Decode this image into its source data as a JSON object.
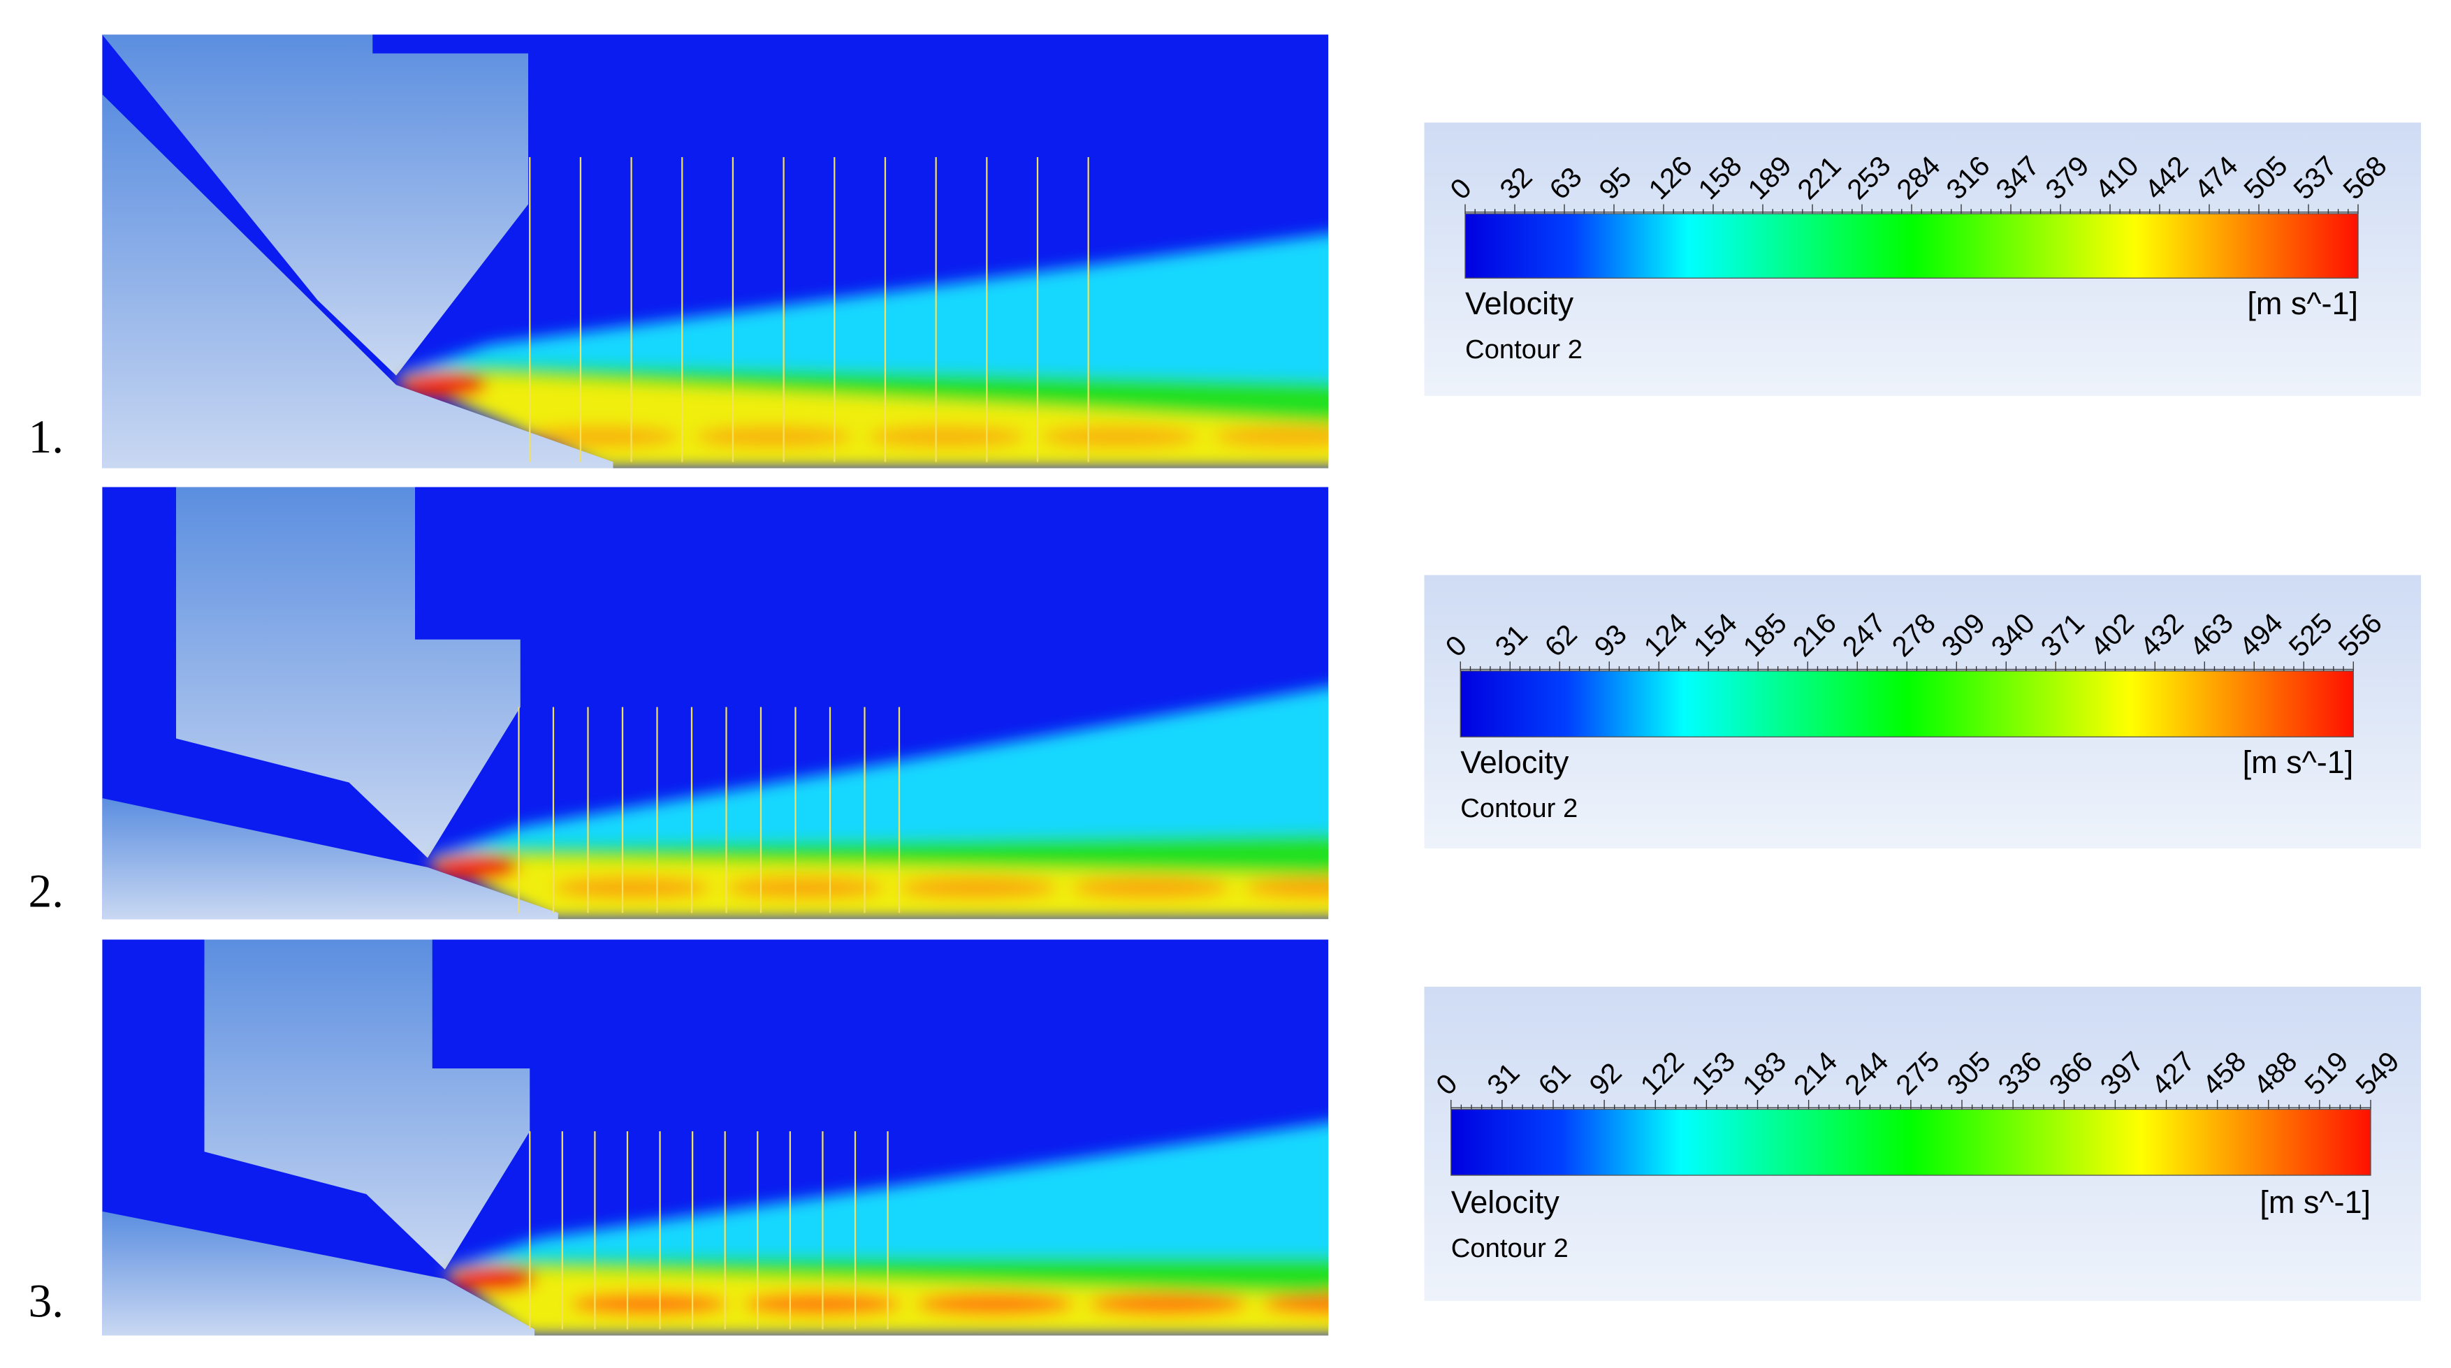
{
  "panels": [
    {
      "label": "1.",
      "legend": {
        "title": "Velocity",
        "unit": "[m s^-1]",
        "subtitle": "Contour 2",
        "ticks": [
          0,
          32,
          63,
          95,
          126,
          158,
          189,
          221,
          253,
          284,
          316,
          347,
          379,
          410,
          442,
          474,
          505,
          537,
          568
        ]
      }
    },
    {
      "label": "2.",
      "legend": {
        "title": "Velocity",
        "unit": "[m s^-1]",
        "subtitle": "Contour 2",
        "ticks": [
          0,
          31,
          62,
          93,
          124,
          154,
          185,
          216,
          247,
          278,
          309,
          340,
          371,
          402,
          432,
          463,
          494,
          525,
          556
        ]
      }
    },
    {
      "label": "3.",
      "legend": {
        "title": "Velocity",
        "unit": "[m s^-1]",
        "subtitle": "Contour 2",
        "ticks": [
          0,
          31,
          61,
          92,
          122,
          153,
          183,
          214,
          244,
          275,
          305,
          336,
          366,
          397,
          427,
          458,
          488,
          519,
          549
        ]
      }
    }
  ]
}
